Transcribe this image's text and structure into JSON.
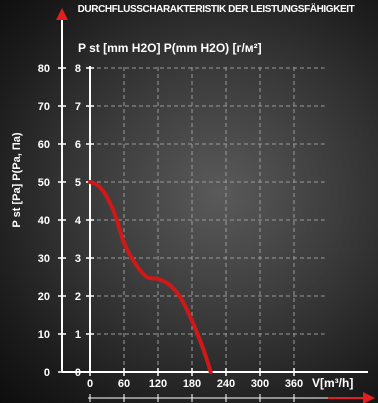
{
  "chart_data": {
    "type": "line",
    "title": "DURCHFLUSSCHARAKTERISTIK DER LEISTUNGSFÄHIGKEIT",
    "x_axis_label": "V[m³/h]",
    "y_axis_label_outer": "P st [Pa] P(Pa, Па)",
    "y_axis_label_inner": "P st [mm H2O] P(mm H2O) [г/м²]",
    "x_ticks": [
      "0",
      "60",
      "120",
      "180",
      "240",
      "300",
      "360"
    ],
    "y_ticks_outer": [
      "0",
      "10",
      "20",
      "30",
      "40",
      "50",
      "60",
      "70",
      "80"
    ],
    "y_ticks_inner": [
      "0",
      "1",
      "2",
      "3",
      "4",
      "5",
      "6",
      "7",
      "8"
    ],
    "xlim": [
      0,
      400
    ],
    "ylim": [
      0,
      8
    ],
    "grid": true,
    "series": [
      {
        "unit": "mm H2O",
        "color": "#d01818",
        "points": [
          [
            0,
            5.0
          ],
          [
            15,
            4.9
          ],
          [
            30,
            4.6
          ],
          [
            45,
            4.1
          ],
          [
            60,
            3.4
          ],
          [
            80,
            2.85
          ],
          [
            100,
            2.5
          ],
          [
            120,
            2.45
          ],
          [
            140,
            2.3
          ],
          [
            160,
            1.95
          ],
          [
            180,
            1.35
          ],
          [
            200,
            0.6
          ],
          [
            213,
            0.0
          ]
        ]
      }
    ],
    "colors": {
      "axis_arrow": "#e02020",
      "grid": "#9a9a9a",
      "axis": "#ffffff"
    }
  }
}
